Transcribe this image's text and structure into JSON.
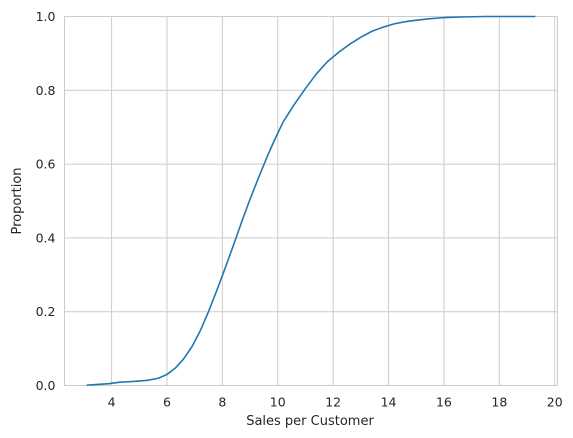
{
  "chart_data": {
    "type": "line",
    "title": "",
    "xlabel": "Sales per Customer",
    "ylabel": "Proportion",
    "xlim": [
      2.3,
      20.1
    ],
    "ylim": [
      0.0,
      1.0
    ],
    "xticks": [
      4,
      6,
      8,
      10,
      12,
      14,
      16,
      18,
      20
    ],
    "xtick_labels": [
      "4",
      "6",
      "8",
      "10",
      "12",
      "14",
      "16",
      "18",
      "20"
    ],
    "yticks": [
      0.0,
      0.2,
      0.4,
      0.6,
      0.8,
      1.0
    ],
    "ytick_labels": [
      "0.0",
      "0.2",
      "0.4",
      "0.6",
      "0.8",
      "1.0"
    ],
    "grid": true,
    "color": "#1f77b4",
    "series": [
      {
        "x": [
          3.1,
          3.5,
          3.9,
          4.3,
          4.8,
          5.3,
          5.7,
          6.0,
          6.3,
          6.6,
          6.9,
          7.2,
          7.5,
          7.8,
          8.1,
          8.4,
          8.7,
          9.0,
          9.3,
          9.6,
          9.9,
          10.2,
          10.6,
          11.0,
          11.4,
          11.8,
          12.2,
          12.6,
          13.0,
          13.4,
          13.8,
          14.2,
          14.6,
          15.0,
          15.5,
          16.0,
          16.8,
          17.5,
          18.3,
          19.3
        ],
        "y": [
          0.001,
          0.003,
          0.005,
          0.009,
          0.011,
          0.014,
          0.02,
          0.03,
          0.047,
          0.072,
          0.105,
          0.148,
          0.2,
          0.258,
          0.318,
          0.38,
          0.444,
          0.505,
          0.562,
          0.617,
          0.668,
          0.715,
          0.762,
          0.805,
          0.845,
          0.878,
          0.903,
          0.925,
          0.944,
          0.96,
          0.971,
          0.98,
          0.986,
          0.99,
          0.994,
          0.997,
          0.999,
          1.0,
          1.0,
          1.0
        ]
      }
    ]
  }
}
